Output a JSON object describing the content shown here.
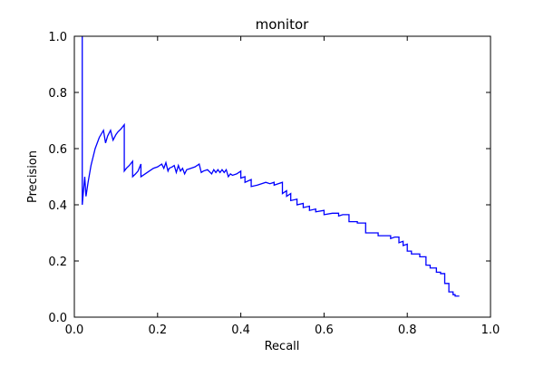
{
  "chart_data": {
    "type": "line",
    "title": "monitor",
    "xlabel": "Recall",
    "ylabel": "Precision",
    "xlim": [
      0.0,
      1.0
    ],
    "ylim": [
      0.0,
      1.0
    ],
    "xticks": [
      "0.0",
      "0.2",
      "0.4",
      "0.6",
      "0.8",
      "1.0"
    ],
    "yticks": [
      "0.0",
      "0.2",
      "0.4",
      "0.6",
      "0.8",
      "1.0"
    ],
    "grid": false,
    "legend": "none",
    "line_color": "#0000ff",
    "series": [
      {
        "x": [
          0.019,
          0.019,
          0.019,
          0.019,
          0.025,
          0.028,
          0.033,
          0.04,
          0.05,
          0.06,
          0.07,
          0.075,
          0.08,
          0.087,
          0.093,
          0.1,
          0.105,
          0.112,
          0.12,
          0.12,
          0.125,
          0.132,
          0.14,
          0.14,
          0.147,
          0.153,
          0.16,
          0.16,
          0.17,
          0.18,
          0.19,
          0.2,
          0.21,
          0.215,
          0.22,
          0.225,
          0.228,
          0.235,
          0.24,
          0.245,
          0.25,
          0.255,
          0.26,
          0.265,
          0.27,
          0.28,
          0.29,
          0.3,
          0.305,
          0.31,
          0.32,
          0.33,
          0.335,
          0.34,
          0.345,
          0.35,
          0.355,
          0.36,
          0.365,
          0.37,
          0.375,
          0.38,
          0.39,
          0.4,
          0.4,
          0.41,
          0.41,
          0.425,
          0.425,
          0.44,
          0.45,
          0.46,
          0.47,
          0.48,
          0.48,
          0.49,
          0.5,
          0.5,
          0.51,
          0.51,
          0.52,
          0.52,
          0.535,
          0.535,
          0.55,
          0.55,
          0.565,
          0.565,
          0.58,
          0.58,
          0.6,
          0.6,
          0.62,
          0.62,
          0.635,
          0.635,
          0.645,
          0.645,
          0.66,
          0.66,
          0.68,
          0.68,
          0.69,
          0.69,
          0.7,
          0.7,
          0.73,
          0.73,
          0.76,
          0.76,
          0.77,
          0.77,
          0.78,
          0.78,
          0.79,
          0.79,
          0.8,
          0.8,
          0.81,
          0.81,
          0.83,
          0.83,
          0.845,
          0.845,
          0.855,
          0.855,
          0.87,
          0.87,
          0.88,
          0.88,
          0.89,
          0.89,
          0.9,
          0.9,
          0.91,
          0.91,
          0.915,
          0.915,
          0.925
        ],
        "y": [
          1.0,
          0.4,
          0.4,
          0.4,
          0.5,
          0.43,
          0.48,
          0.54,
          0.6,
          0.64,
          0.665,
          0.62,
          0.645,
          0.665,
          0.63,
          0.65,
          0.66,
          0.67,
          0.685,
          0.52,
          0.53,
          0.54,
          0.555,
          0.5,
          0.51,
          0.52,
          0.545,
          0.5,
          0.51,
          0.52,
          0.53,
          0.535,
          0.545,
          0.53,
          0.55,
          0.52,
          0.53,
          0.535,
          0.54,
          0.515,
          0.54,
          0.52,
          0.53,
          0.51,
          0.525,
          0.53,
          0.535,
          0.545,
          0.515,
          0.52,
          0.525,
          0.51,
          0.525,
          0.515,
          0.525,
          0.515,
          0.525,
          0.515,
          0.525,
          0.5,
          0.51,
          0.505,
          0.51,
          0.52,
          0.495,
          0.5,
          0.48,
          0.49,
          0.465,
          0.47,
          0.475,
          0.48,
          0.475,
          0.48,
          0.47,
          0.475,
          0.48,
          0.44,
          0.45,
          0.43,
          0.44,
          0.415,
          0.42,
          0.4,
          0.405,
          0.39,
          0.395,
          0.38,
          0.385,
          0.375,
          0.38,
          0.365,
          0.37,
          0.37,
          0.37,
          0.36,
          0.365,
          0.365,
          0.365,
          0.34,
          0.34,
          0.335,
          0.335,
          0.335,
          0.335,
          0.3,
          0.3,
          0.29,
          0.29,
          0.28,
          0.285,
          0.285,
          0.285,
          0.265,
          0.27,
          0.255,
          0.26,
          0.235,
          0.235,
          0.225,
          0.225,
          0.215,
          0.215,
          0.185,
          0.185,
          0.175,
          0.175,
          0.16,
          0.16,
          0.155,
          0.155,
          0.12,
          0.12,
          0.09,
          0.09,
          0.08,
          0.08,
          0.075,
          0.075
        ]
      }
    ]
  }
}
